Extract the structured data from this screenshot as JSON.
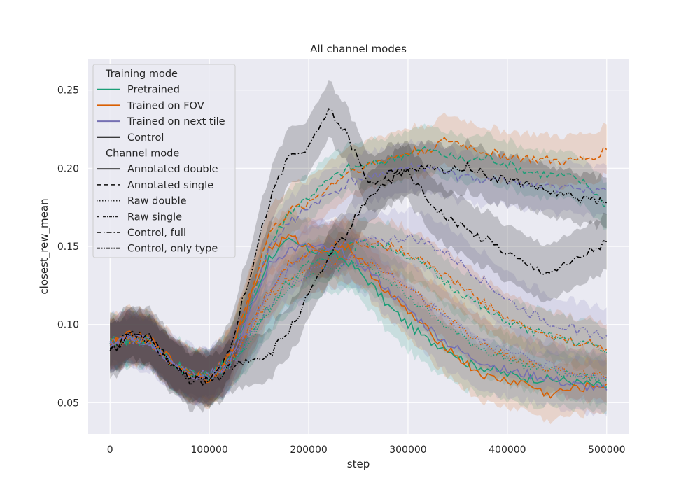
{
  "chart_data": {
    "type": "line",
    "title": "All channel modes",
    "xlabel": "step",
    "ylabel": "closest_rew_mean",
    "xlim": [
      -22000,
      522000
    ],
    "ylim": [
      0.03,
      0.27
    ],
    "xticks": [
      0,
      100000,
      200000,
      300000,
      400000,
      500000
    ],
    "xtick_labels": [
      "0",
      "100000",
      "200000",
      "300000",
      "400000",
      "500000"
    ],
    "yticks": [
      0.05,
      0.1,
      0.15,
      0.2,
      0.25
    ],
    "ytick_labels": [
      "0.05",
      "0.10",
      "0.15",
      "0.20",
      "0.25"
    ],
    "grid": true,
    "legend": {
      "placement": "top-left",
      "hue_title": "Training mode",
      "hue_entries": [
        {
          "label": "Pretrained",
          "color": "#1b9e77"
        },
        {
          "label": "Trained on FOV",
          "color": "#d95f02"
        },
        {
          "label": "Trained on next tile",
          "color": "#7570b3"
        },
        {
          "label": "Control",
          "color": "#000000"
        }
      ],
      "style_title": "Channel mode",
      "style_entries": [
        {
          "label": "Annotated double",
          "dash": "solid"
        },
        {
          "label": "Annotated single",
          "dash": "dashed"
        },
        {
          "label": "Raw double",
          "dash": "dotted"
        },
        {
          "label": "Raw single",
          "dash": "dashdot-short"
        },
        {
          "label": "Control, full",
          "dash": "dashdot"
        },
        {
          "label": "Control, only type",
          "dash": "dashdotdot"
        }
      ]
    },
    "series": [
      {
        "name": "Pretrained",
        "style": "Annotated double",
        "color": "#1b9e77",
        "dash": "solid",
        "band": 0.017,
        "x": [
          0,
          20000,
          40000,
          60000,
          80000,
          100000,
          120000,
          140000,
          160000,
          180000,
          200000,
          220000,
          240000,
          260000,
          280000,
          300000,
          320000,
          340000,
          360000,
          380000,
          400000,
          420000,
          440000,
          460000,
          480000,
          500000
        ],
        "y": [
          0.088,
          0.092,
          0.09,
          0.078,
          0.069,
          0.066,
          0.078,
          0.108,
          0.143,
          0.153,
          0.148,
          0.146,
          0.14,
          0.128,
          0.112,
          0.1,
          0.09,
          0.085,
          0.075,
          0.072,
          0.068,
          0.066,
          0.065,
          0.064,
          0.062,
          0.06
        ]
      },
      {
        "name": "Pretrained",
        "style": "Annotated single",
        "color": "#1b9e77",
        "dash": "dashed",
        "band": 0.015,
        "x": [
          0,
          20000,
          40000,
          60000,
          80000,
          100000,
          120000,
          140000,
          160000,
          180000,
          200000,
          220000,
          240000,
          260000,
          280000,
          300000,
          320000,
          340000,
          360000,
          380000,
          400000,
          420000,
          440000,
          460000,
          480000,
          500000
        ],
        "y": [
          0.09,
          0.091,
          0.089,
          0.077,
          0.07,
          0.067,
          0.08,
          0.112,
          0.15,
          0.172,
          0.182,
          0.192,
          0.2,
          0.202,
          0.205,
          0.21,
          0.212,
          0.208,
          0.205,
          0.207,
          0.203,
          0.198,
          0.196,
          0.195,
          0.19,
          0.176
        ]
      },
      {
        "name": "Pretrained",
        "style": "Raw double",
        "color": "#1b9e77",
        "dash": "dotted",
        "band": 0.016,
        "x": [
          0,
          20000,
          40000,
          60000,
          80000,
          100000,
          120000,
          140000,
          160000,
          180000,
          200000,
          220000,
          240000,
          260000,
          280000,
          300000,
          320000,
          340000,
          360000,
          380000,
          400000,
          420000,
          440000,
          460000,
          480000,
          500000
        ],
        "y": [
          0.087,
          0.09,
          0.088,
          0.076,
          0.069,
          0.066,
          0.072,
          0.088,
          0.108,
          0.124,
          0.133,
          0.135,
          0.138,
          0.138,
          0.13,
          0.118,
          0.108,
          0.098,
          0.09,
          0.083,
          0.078,
          0.074,
          0.071,
          0.068,
          0.066,
          0.064
        ]
      },
      {
        "name": "Pretrained",
        "style": "Raw single",
        "color": "#1b9e77",
        "dash": "dashdot-short",
        "band": 0.015,
        "x": [
          0,
          20000,
          40000,
          60000,
          80000,
          100000,
          120000,
          140000,
          160000,
          180000,
          200000,
          220000,
          240000,
          260000,
          280000,
          300000,
          320000,
          340000,
          360000,
          380000,
          400000,
          420000,
          440000,
          460000,
          480000,
          500000
        ],
        "y": [
          0.088,
          0.09,
          0.089,
          0.077,
          0.068,
          0.067,
          0.073,
          0.092,
          0.112,
          0.128,
          0.138,
          0.145,
          0.15,
          0.152,
          0.15,
          0.144,
          0.136,
          0.126,
          0.118,
          0.108,
          0.102,
          0.097,
          0.093,
          0.09,
          0.088,
          0.082
        ]
      },
      {
        "name": "Trained on FOV",
        "style": "Annotated double",
        "color": "#d95f02",
        "dash": "solid",
        "band": 0.017,
        "x": [
          0,
          20000,
          40000,
          60000,
          80000,
          100000,
          120000,
          140000,
          160000,
          180000,
          200000,
          220000,
          240000,
          260000,
          280000,
          300000,
          320000,
          340000,
          360000,
          380000,
          400000,
          420000,
          440000,
          460000,
          480000,
          500000
        ],
        "y": [
          0.089,
          0.093,
          0.091,
          0.078,
          0.068,
          0.065,
          0.079,
          0.115,
          0.148,
          0.156,
          0.15,
          0.148,
          0.15,
          0.135,
          0.12,
          0.108,
          0.096,
          0.085,
          0.074,
          0.066,
          0.064,
          0.062,
          0.055,
          0.058,
          0.06,
          0.062
        ]
      },
      {
        "name": "Trained on FOV",
        "style": "Annotated single",
        "color": "#d95f02",
        "dash": "dashed",
        "band": 0.016,
        "x": [
          0,
          20000,
          40000,
          60000,
          80000,
          100000,
          120000,
          140000,
          160000,
          180000,
          200000,
          220000,
          240000,
          260000,
          280000,
          300000,
          320000,
          340000,
          360000,
          380000,
          400000,
          420000,
          440000,
          460000,
          480000,
          500000
        ],
        "y": [
          0.09,
          0.092,
          0.09,
          0.077,
          0.069,
          0.066,
          0.081,
          0.118,
          0.158,
          0.172,
          0.178,
          0.188,
          0.198,
          0.202,
          0.206,
          0.21,
          0.212,
          0.218,
          0.214,
          0.21,
          0.208,
          0.206,
          0.205,
          0.204,
          0.206,
          0.212
        ]
      },
      {
        "name": "Trained on FOV",
        "style": "Raw double",
        "color": "#d95f02",
        "dash": "dotted",
        "band": 0.016,
        "x": [
          0,
          20000,
          40000,
          60000,
          80000,
          100000,
          120000,
          140000,
          160000,
          180000,
          200000,
          220000,
          240000,
          260000,
          280000,
          300000,
          320000,
          340000,
          360000,
          380000,
          400000,
          420000,
          440000,
          460000,
          480000,
          500000
        ],
        "y": [
          0.088,
          0.091,
          0.089,
          0.077,
          0.068,
          0.066,
          0.074,
          0.094,
          0.118,
          0.13,
          0.135,
          0.14,
          0.142,
          0.14,
          0.134,
          0.124,
          0.114,
          0.104,
          0.094,
          0.086,
          0.08,
          0.076,
          0.072,
          0.07,
          0.068,
          0.066
        ]
      },
      {
        "name": "Trained on FOV",
        "style": "Raw single",
        "color": "#d95f02",
        "dash": "dashdot-short",
        "band": 0.016,
        "x": [
          0,
          20000,
          40000,
          60000,
          80000,
          100000,
          120000,
          140000,
          160000,
          180000,
          200000,
          220000,
          240000,
          260000,
          280000,
          300000,
          320000,
          340000,
          360000,
          380000,
          400000,
          420000,
          440000,
          460000,
          480000,
          500000
        ],
        "y": [
          0.088,
          0.09,
          0.088,
          0.077,
          0.069,
          0.066,
          0.075,
          0.098,
          0.122,
          0.138,
          0.146,
          0.15,
          0.152,
          0.152,
          0.15,
          0.146,
          0.14,
          0.13,
          0.122,
          0.112,
          0.104,
          0.098,
          0.093,
          0.09,
          0.088,
          0.084
        ]
      },
      {
        "name": "Trained on next tile",
        "style": "Annotated double",
        "color": "#7570b3",
        "dash": "solid",
        "band": 0.017,
        "x": [
          0,
          20000,
          40000,
          60000,
          80000,
          100000,
          120000,
          140000,
          160000,
          180000,
          200000,
          220000,
          240000,
          260000,
          280000,
          300000,
          320000,
          340000,
          360000,
          380000,
          400000,
          420000,
          440000,
          460000,
          480000,
          500000
        ],
        "y": [
          0.088,
          0.092,
          0.09,
          0.077,
          0.068,
          0.066,
          0.076,
          0.105,
          0.138,
          0.148,
          0.15,
          0.148,
          0.145,
          0.135,
          0.122,
          0.11,
          0.098,
          0.088,
          0.08,
          0.075,
          0.07,
          0.068,
          0.066,
          0.062,
          0.06,
          0.058
        ]
      },
      {
        "name": "Trained on next tile",
        "style": "Annotated single",
        "color": "#7570b3",
        "dash": "dashed",
        "band": 0.016,
        "x": [
          0,
          20000,
          40000,
          60000,
          80000,
          100000,
          120000,
          140000,
          160000,
          180000,
          200000,
          220000,
          240000,
          260000,
          280000,
          300000,
          320000,
          340000,
          360000,
          380000,
          400000,
          420000,
          440000,
          460000,
          480000,
          500000
        ],
        "y": [
          0.089,
          0.091,
          0.089,
          0.076,
          0.069,
          0.067,
          0.078,
          0.11,
          0.148,
          0.165,
          0.175,
          0.182,
          0.19,
          0.195,
          0.198,
          0.2,
          0.2,
          0.197,
          0.193,
          0.192,
          0.192,
          0.19,
          0.188,
          0.187,
          0.187,
          0.186
        ]
      },
      {
        "name": "Trained on next tile",
        "style": "Raw double",
        "color": "#7570b3",
        "dash": "dotted",
        "band": 0.016,
        "x": [
          0,
          20000,
          40000,
          60000,
          80000,
          100000,
          120000,
          140000,
          160000,
          180000,
          200000,
          220000,
          240000,
          260000,
          280000,
          300000,
          320000,
          340000,
          360000,
          380000,
          400000,
          420000,
          440000,
          460000,
          480000,
          500000
        ],
        "y": [
          0.087,
          0.09,
          0.088,
          0.076,
          0.068,
          0.066,
          0.073,
          0.09,
          0.112,
          0.126,
          0.134,
          0.138,
          0.14,
          0.14,
          0.134,
          0.124,
          0.114,
          0.104,
          0.096,
          0.088,
          0.082,
          0.078,
          0.074,
          0.07,
          0.068,
          0.066
        ]
      },
      {
        "name": "Trained on next tile",
        "style": "Raw single",
        "color": "#7570b3",
        "dash": "dashdot-short",
        "band": 0.018,
        "x": [
          0,
          20000,
          40000,
          60000,
          80000,
          100000,
          120000,
          140000,
          160000,
          180000,
          200000,
          220000,
          240000,
          260000,
          280000,
          300000,
          320000,
          340000,
          360000,
          380000,
          400000,
          420000,
          440000,
          460000,
          480000,
          500000
        ],
        "y": [
          0.088,
          0.09,
          0.089,
          0.077,
          0.069,
          0.067,
          0.075,
          0.096,
          0.12,
          0.136,
          0.146,
          0.15,
          0.152,
          0.153,
          0.154,
          0.156,
          0.152,
          0.145,
          0.136,
          0.126,
          0.116,
          0.108,
          0.102,
          0.098,
          0.095,
          0.093
        ]
      },
      {
        "name": "Control",
        "style": "Control, full",
        "color": "#000000",
        "dash": "dashdot",
        "band": 0.018,
        "x": [
          0,
          20000,
          40000,
          60000,
          80000,
          100000,
          120000,
          140000,
          160000,
          180000,
          200000,
          220000,
          240000,
          260000,
          280000,
          300000,
          320000,
          340000,
          360000,
          380000,
          400000,
          420000,
          440000,
          460000,
          480000,
          500000
        ],
        "y": [
          0.082,
          0.095,
          0.092,
          0.076,
          0.064,
          0.064,
          0.084,
          0.13,
          0.178,
          0.208,
          0.212,
          0.238,
          0.22,
          0.19,
          0.196,
          0.198,
          0.18,
          0.168,
          0.16,
          0.154,
          0.146,
          0.138,
          0.134,
          0.138,
          0.146,
          0.153
        ]
      },
      {
        "name": "Control",
        "style": "Control, only type",
        "color": "#000000",
        "dash": "dashdotdot",
        "band": 0.016,
        "x": [
          0,
          20000,
          40000,
          60000,
          80000,
          100000,
          120000,
          140000,
          160000,
          180000,
          200000,
          220000,
          240000,
          260000,
          280000,
          300000,
          320000,
          340000,
          360000,
          380000,
          400000,
          420000,
          440000,
          460000,
          480000,
          500000
        ],
        "y": [
          0.082,
          0.094,
          0.09,
          0.075,
          0.066,
          0.063,
          0.072,
          0.078,
          0.08,
          0.096,
          0.118,
          0.142,
          0.16,
          0.182,
          0.192,
          0.198,
          0.2,
          0.198,
          0.202,
          0.195,
          0.192,
          0.19,
          0.185,
          0.182,
          0.18,
          0.178
        ]
      }
    ]
  }
}
